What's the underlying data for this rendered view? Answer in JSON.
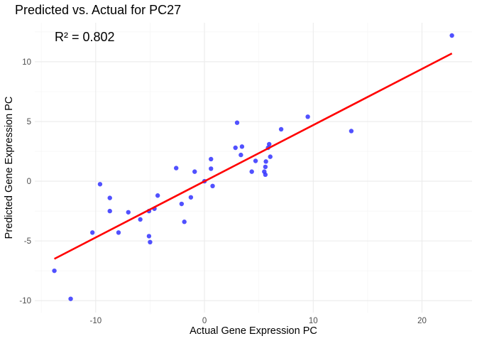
{
  "chart_data": {
    "type": "scatter",
    "title": "Predicted vs. Actual for PC27",
    "xlabel": "Actual Gene Expression PC",
    "ylabel": "Predicted Gene Expression PC",
    "xlim": [
      -15.6,
      24.6
    ],
    "ylim": [
      -11.0,
      13.27
    ],
    "x_ticks": [
      -10,
      0,
      10,
      20
    ],
    "y_ticks": [
      -10,
      -5,
      0,
      5,
      10
    ],
    "x_tick_labels": [
      "-10",
      "0",
      "10",
      "20"
    ],
    "y_tick_labels": [
      "-10",
      "-5",
      "0",
      "5",
      "10"
    ],
    "x_minor_ticks": [
      -15,
      -5,
      5,
      15
    ],
    "y_minor_ticks": [
      -7.5,
      -2.5,
      2.5,
      7.5,
      12.5
    ],
    "grid": true,
    "annotation": "R² = 0.802",
    "point_color": "#3333ff",
    "line_color": "#ff0000",
    "points": [
      {
        "x": -13.8,
        "y": -7.5
      },
      {
        "x": -12.3,
        "y": -9.85
      },
      {
        "x": -10.3,
        "y": -4.3
      },
      {
        "x": -9.6,
        "y": -0.25
      },
      {
        "x": -8.7,
        "y": -1.4
      },
      {
        "x": -8.7,
        "y": -2.5
      },
      {
        "x": -7.9,
        "y": -4.3
      },
      {
        "x": -7.0,
        "y": -2.6
      },
      {
        "x": -5.9,
        "y": -3.2
      },
      {
        "x": -5.1,
        "y": -2.5
      },
      {
        "x": -4.6,
        "y": -2.3
      },
      {
        "x": -4.3,
        "y": -1.2
      },
      {
        "x": -5.1,
        "y": -4.6
      },
      {
        "x": -5.0,
        "y": -5.1
      },
      {
        "x": -2.6,
        "y": 1.1
      },
      {
        "x": -0.9,
        "y": 0.8
      },
      {
        "x": -2.1,
        "y": -1.9
      },
      {
        "x": -1.25,
        "y": -1.35
      },
      {
        "x": -1.85,
        "y": -3.4
      },
      {
        "x": 0.0,
        "y": 0.0
      },
      {
        "x": 0.6,
        "y": 1.85
      },
      {
        "x": 0.6,
        "y": 1.05
      },
      {
        "x": 0.75,
        "y": -0.4
      },
      {
        "x": 3.0,
        "y": 4.9
      },
      {
        "x": 2.85,
        "y": 2.8
      },
      {
        "x": 3.45,
        "y": 2.9
      },
      {
        "x": 3.35,
        "y": 2.2
      },
      {
        "x": 4.7,
        "y": 1.7
      },
      {
        "x": 4.35,
        "y": 0.8
      },
      {
        "x": 5.5,
        "y": 0.8
      },
      {
        "x": 5.6,
        "y": 0.55
      },
      {
        "x": 5.6,
        "y": 1.2
      },
      {
        "x": 5.65,
        "y": 1.65
      },
      {
        "x": 5.85,
        "y": 2.8
      },
      {
        "x": 5.95,
        "y": 3.1
      },
      {
        "x": 6.05,
        "y": 2.05
      },
      {
        "x": 7.05,
        "y": 4.35
      },
      {
        "x": 9.5,
        "y": 5.4
      },
      {
        "x": 13.5,
        "y": 4.2
      },
      {
        "x": 22.75,
        "y": 12.2
      }
    ],
    "regression_line": {
      "x": [
        -13.8,
        22.75
      ],
      "y": [
        -6.5,
        10.7
      ]
    }
  }
}
